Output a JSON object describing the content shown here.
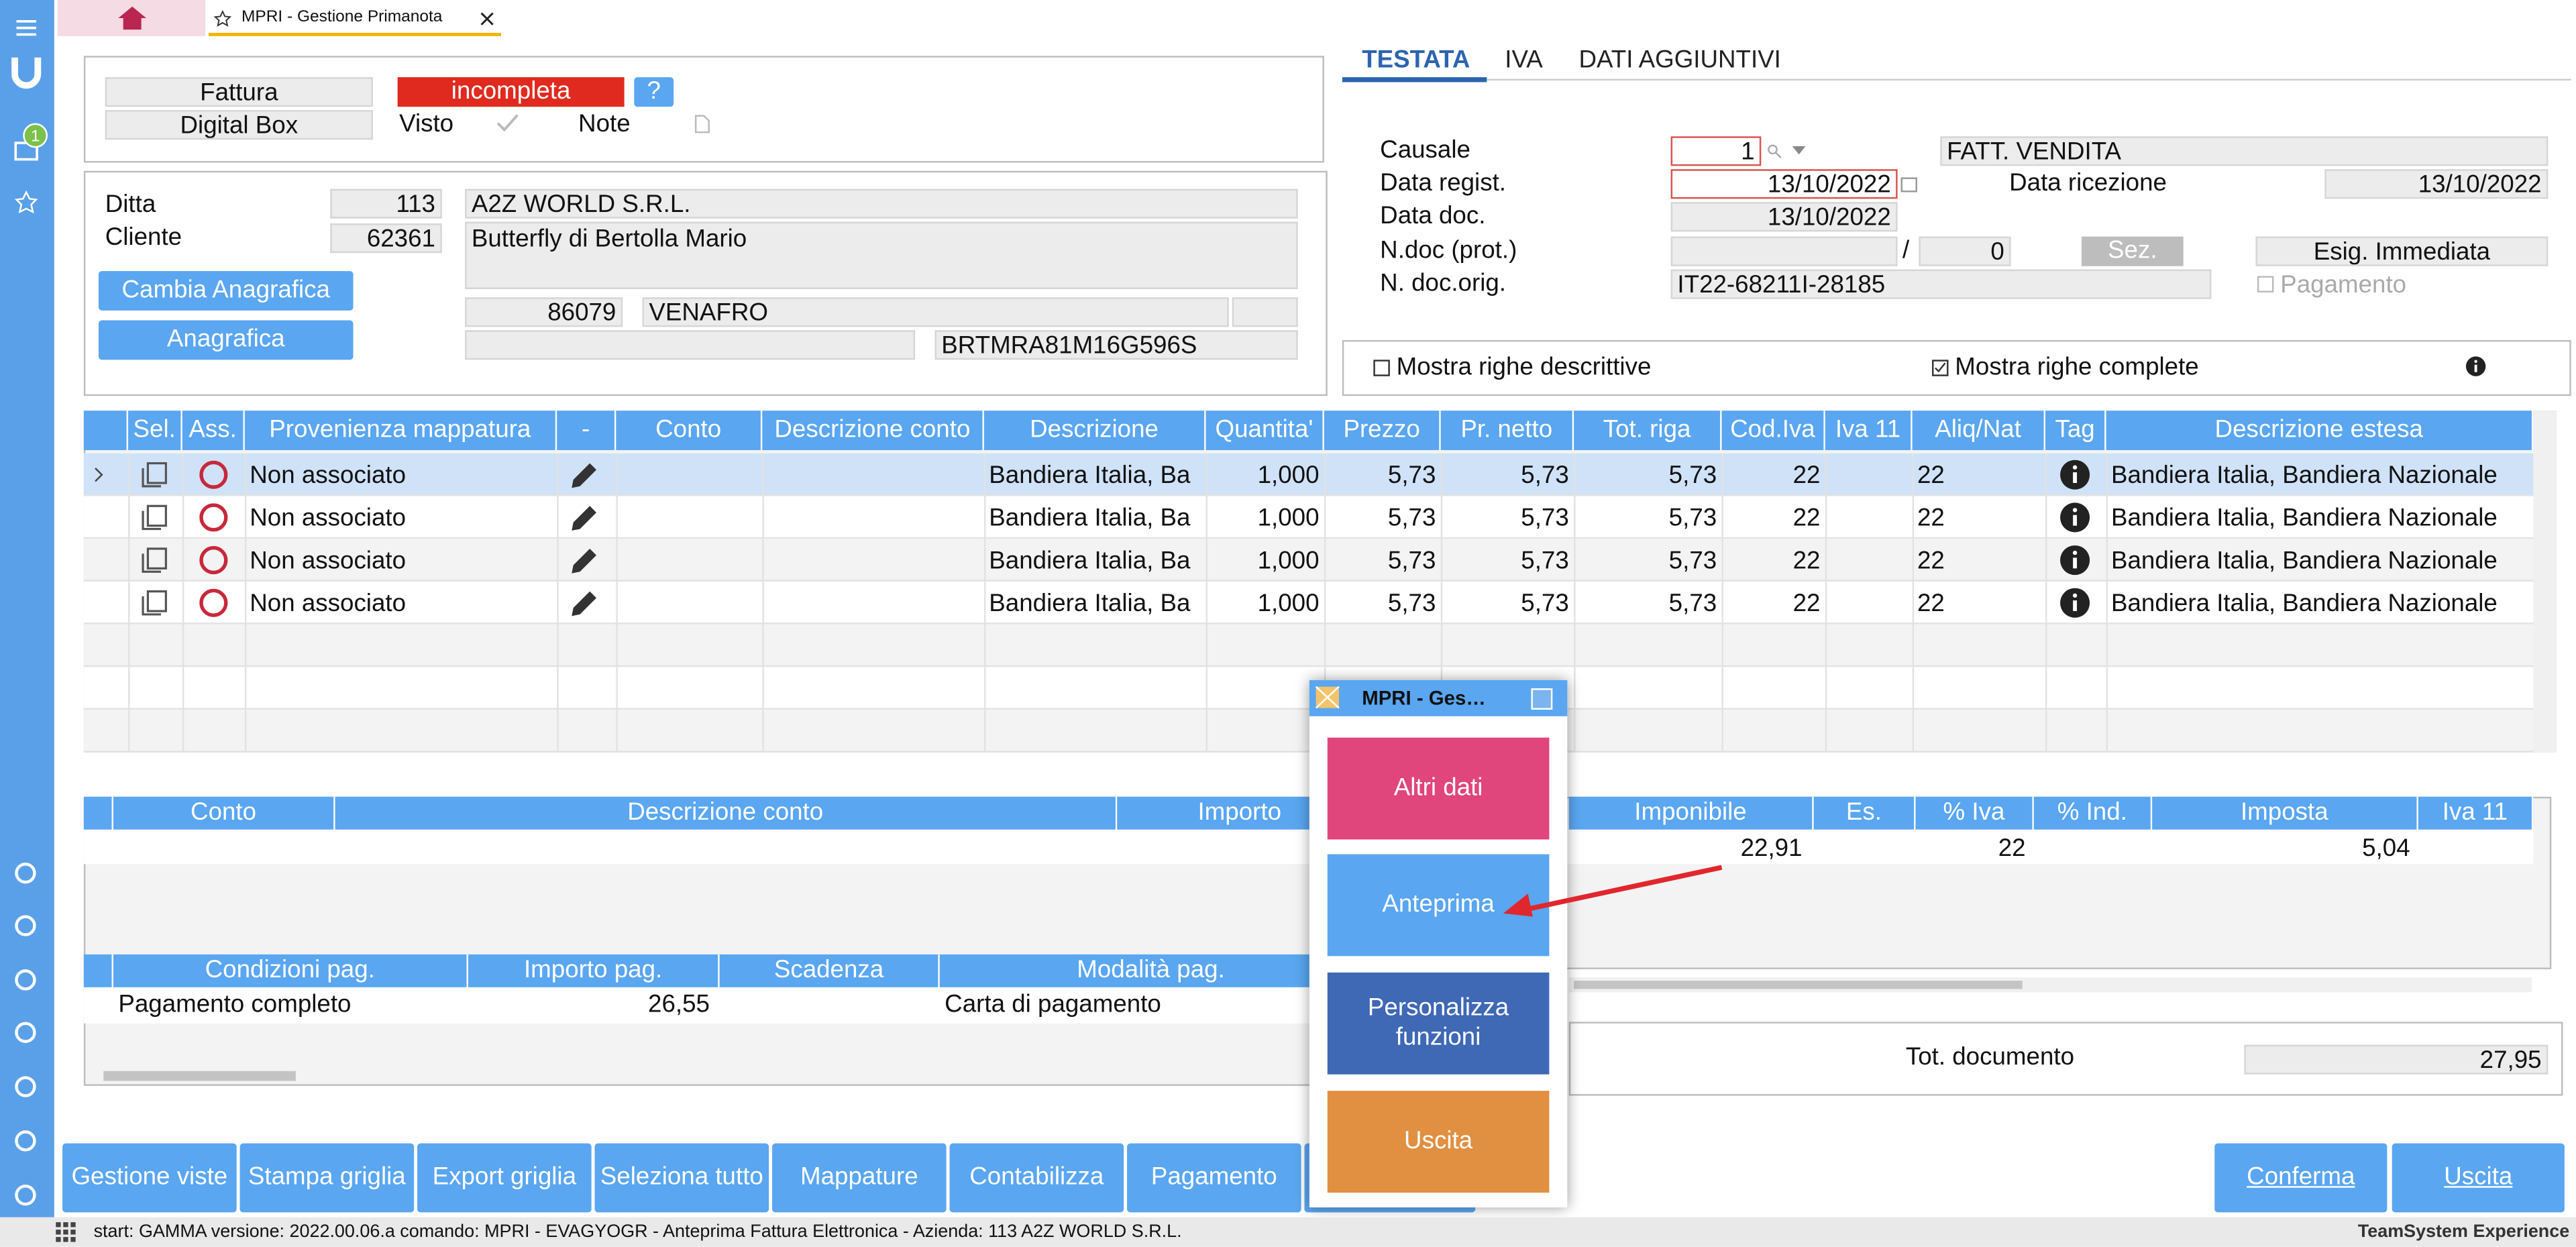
{
  "tab": {
    "title": "MPRI - Gestione Primanota",
    "badge": "1"
  },
  "header": {
    "doc_type": "Fattura",
    "status": "incompleta",
    "help": "?",
    "digital_box": "Digital Box",
    "visto": "Visto",
    "note": "Note"
  },
  "anagrafica": {
    "ditta_label": "Ditta",
    "ditta_code": "113",
    "ditta_name": "A2Z WORLD S.R.L.",
    "cliente_label": "Cliente",
    "cliente_code": "62361",
    "cliente_name": "Butterfly di Bertolla Mario",
    "cap": "86079",
    "city": "VENAFRO",
    "cf": "BRTMRA81M16G596S",
    "buttons": [
      "Cambia Anagrafica",
      "Anagrafica"
    ]
  },
  "right_tabs": [
    "TESTATA",
    "IVA",
    "DATI AGGIUNTIVI"
  ],
  "testata": {
    "causale_label": "Causale",
    "causale": "1",
    "causale_desc": "FATT. VENDITA",
    "data_regist_label": "Data regist.",
    "data_regist": "13/10/2022",
    "data_ricezione_label": "Data ricezione",
    "data_ricezione": "13/10/2022",
    "data_doc_label": "Data doc.",
    "data_doc": "13/10/2022",
    "ndoc_label": "N.doc (prot.)",
    "slash": "/",
    "ndoc_num": "0",
    "sez": "Sez.",
    "esig": "Esig. Immediata",
    "ndoc_orig_label": "N. doc.orig.",
    "ndoc_orig": "IT22-68211I-28185",
    "pagamento": "Pagamento"
  },
  "options": [
    "Mostra righe descrittive",
    "Mostra righe complete"
  ],
  "grid": {
    "columns": [
      "Sel.",
      "Ass.",
      "Provenienza mappatura",
      "-",
      "Conto",
      "Descrizione conto",
      "Descrizione",
      "Quantita'",
      "Prezzo",
      "Pr. netto",
      "Tot. riga",
      "Cod.Iva",
      "Iva 11",
      "Aliq/Nat",
      "Tag",
      "Descrizione estesa"
    ],
    "rows": [
      {
        "provenienza": "Non associato",
        "descrizione": "Bandiera Italia, Ba",
        "quantita": "1,000",
        "prezzo": "5,73",
        "netto": "5,73",
        "totale": "5,73",
        "cod_iva": "22",
        "aliq": "22",
        "estesa": "Bandiera Italia, Bandiera Nazionale"
      },
      {
        "provenienza": "Non associato",
        "descrizione": "Bandiera Italia, Ba",
        "quantita": "1,000",
        "prezzo": "5,73",
        "netto": "5,73",
        "totale": "5,73",
        "cod_iva": "22",
        "aliq": "22",
        "estesa": "Bandiera Italia, Bandiera Nazionale"
      },
      {
        "provenienza": "Non associato",
        "descrizione": "Bandiera Italia, Ba",
        "quantita": "1,000",
        "prezzo": "5,73",
        "netto": "5,73",
        "totale": "5,73",
        "cod_iva": "22",
        "aliq": "22",
        "estesa": "Bandiera Italia, Bandiera Nazionale"
      },
      {
        "provenienza": "Non associato",
        "descrizione": "Bandiera Italia, Ba",
        "quantita": "1,000",
        "prezzo": "5,73",
        "netto": "5,73",
        "totale": "5,73",
        "cod_iva": "22",
        "aliq": "22",
        "estesa": "Bandiera Italia, Bandiera Nazionale"
      }
    ]
  },
  "conti": {
    "columns": [
      "Conto",
      "Descrizione conto",
      "Importo"
    ]
  },
  "iva": {
    "columns": [
      "Imponibile",
      "Es.",
      "% Iva",
      "% Ind.",
      "Imposta",
      "Iva 11"
    ],
    "row": {
      "imponibile": "22,91",
      "aliquota": "22",
      "imposta": "5,04"
    }
  },
  "pagamenti": {
    "columns": [
      "Condizioni pag.",
      "Importo pag.",
      "Scadenza",
      "Modalità pag."
    ],
    "row": {
      "condizione": "Pagamento completo",
      "importo": "26,55",
      "modalita": "Carta di pagamento"
    }
  },
  "totale": {
    "label": "Tot. documento",
    "value": "27,95"
  },
  "popup": {
    "title": "MPRI - Ges…",
    "buttons": [
      "Altri dati",
      "Anteprima",
      "Personalizza funzioni",
      "Uscita"
    ]
  },
  "toolbar": [
    "Gestione viste",
    "Stampa griglia",
    "Export griglia",
    "Seleziona tutto",
    "Mappature",
    "Contabilizza",
    "Pagamento"
  ],
  "actions": [
    "Conferma",
    "Uscita"
  ],
  "status": {
    "text": "start: GAMMA versione: 2022.00.06.a comando: MPRI - EVAGYOGR - Anteprima Fattura Elettronica - Azienda: 113 A2Z WORLD S.R.L.",
    "brand": "TeamSystem Experience"
  }
}
